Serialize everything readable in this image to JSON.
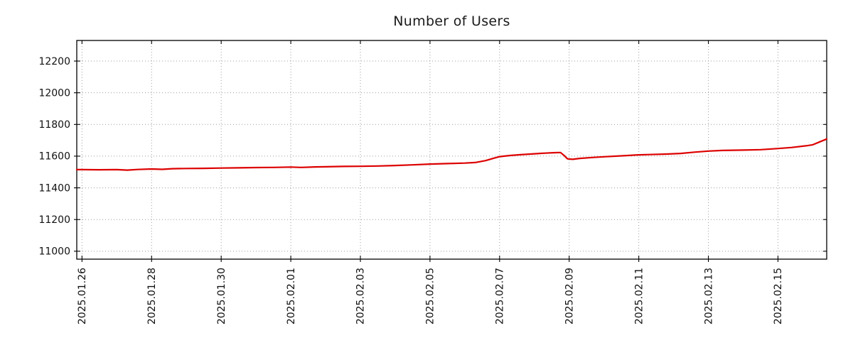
{
  "page": {
    "background": "#ffffff"
  },
  "chart_data": {
    "type": "line",
    "title": "Number of Users",
    "xlabel": "",
    "ylabel": "",
    "grid": {
      "visible": true,
      "style": "dotted",
      "color": "#9c9c9c"
    },
    "legend": "none",
    "border_color": "#000000",
    "text_color": "#1a1a1a",
    "x_axis": {
      "tick_labels": [
        "2025.01.26",
        "2025.01.28",
        "2025.01.30",
        "2025.02.01",
        "2025.02.03",
        "2025.02.05",
        "2025.02.07",
        "2025.02.09",
        "2025.02.11",
        "2025.02.13",
        "2025.02.15"
      ],
      "tick_days": [
        0,
        2,
        4,
        6,
        8,
        10,
        12,
        14,
        16,
        18,
        20
      ],
      "range_days": [
        -0.15,
        21.4
      ],
      "label_rotation_deg": 90
    },
    "y_axis": {
      "ticks": [
        11000,
        11200,
        11400,
        11600,
        11800,
        12000,
        12200
      ],
      "range": [
        10950,
        12330
      ]
    },
    "series": [
      {
        "name": "Number of Users",
        "color": "#dd0000",
        "x_days": [
          -0.15,
          0,
          0.5,
          1,
          1.3,
          1.6,
          2,
          2.3,
          2.6,
          3,
          3.5,
          4,
          4.5,
          5,
          5.5,
          6,
          6.3,
          6.7,
          7,
          7.5,
          8,
          8.5,
          9,
          9.5,
          10,
          10.5,
          11,
          11.3,
          11.6,
          11.8,
          12,
          12.3,
          12.6,
          13,
          13.3,
          13.6,
          13.75,
          13.85,
          13.95,
          14.1,
          14.3,
          14.7,
          15,
          15.5,
          16,
          16.3,
          16.8,
          17.2,
          17.6,
          18,
          18.4,
          19,
          19.5,
          20,
          20.4,
          20.8,
          21,
          21.2,
          21.4
        ],
        "values": [
          11515,
          11515,
          11514,
          11515,
          11512,
          11516,
          11519,
          11517,
          11521,
          11522,
          11523,
          11525,
          11526,
          11528,
          11529,
          11531,
          11529,
          11532,
          11533,
          11535,
          11536,
          11538,
          11541,
          11545,
          11550,
          11553,
          11556,
          11560,
          11572,
          11585,
          11597,
          11604,
          11609,
          11615,
          11619,
          11622,
          11623,
          11605,
          11583,
          11580,
          11586,
          11592,
          11596,
          11602,
          11608,
          11610,
          11613,
          11617,
          11625,
          11632,
          11636,
          11638,
          11641,
          11648,
          11655,
          11665,
          11672,
          11690,
          11708
        ]
      }
    ]
  }
}
